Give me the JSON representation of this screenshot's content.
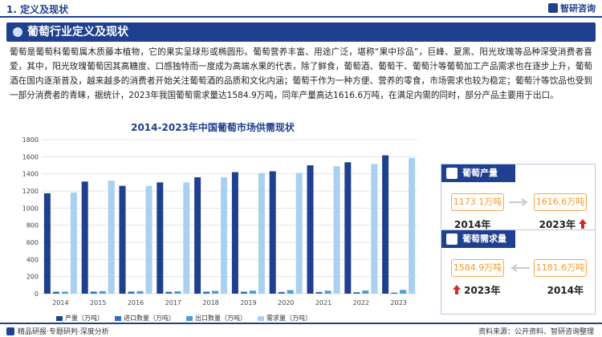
{
  "header": {
    "section_title": "1. 定义及现状",
    "logo_text": "智研咨询"
  },
  "banner": {
    "title": "葡萄行业定义及现状"
  },
  "intro": {
    "text": "葡萄是葡萄科葡萄属木质藤本植物，它的果实呈球形或椭圆形。葡萄营养丰富、用途广泛，堪称“果中珍品”，巨峰、夏黑、阳光玫瑰等品种深受消费者喜爱，其中，阳光玫瑰葡萄因其高糖度、口感独特而一度成为高端水果的代表，除了鲜食，葡萄酒、葡萄干、葡萄汁等葡萄加工产品需求也在逐步上升，葡萄酒在国内逐渐普及，越来越多的消费者开始关注葡萄酒的品质和文化内涵；葡萄干作为一种方便、营养的零食，市场需求也较为稳定；葡萄汁等饮品也受到一部分消费者的青睐，据统计，2023年我国葡萄需求量达1584.9万吨，同年产量高达1616.6万吨，在满足内需的同时，部分产品主要用于出口。"
  },
  "chart_data": {
    "type": "bar",
    "title": "2014-2023年中国葡萄市场供需现状",
    "categories": [
      "2014",
      "2015",
      "2016",
      "2017",
      "2018",
      "2019",
      "2020",
      "2021",
      "2022",
      "2023"
    ],
    "ylim": [
      0,
      1800
    ],
    "yticks": [
      0,
      200,
      400,
      600,
      800,
      1000,
      1200,
      1400,
      1600,
      1800
    ],
    "grid": true,
    "legend_position": "bottom",
    "series": [
      {
        "name": "产量（万吨）",
        "color": "#1f3f8f",
        "values": [
          1173.1,
          1310,
          1260,
          1300,
          1360,
          1420,
          1430,
          1500,
          1535,
          1616.6
        ]
      },
      {
        "name": "进口数量（万吨）",
        "color": "#2e6ec4",
        "values": [
          23,
          24,
          24,
          22,
          23,
          23,
          20,
          20,
          17,
          12
        ]
      },
      {
        "name": "出口数量（万吨）",
        "color": "#4a9fd6",
        "values": [
          23,
          30,
          30,
          28,
          33,
          35,
          42,
          35,
          37,
          44
        ]
      },
      {
        "name": "需求量（万吨）",
        "color": "#a9d0f0",
        "values": [
          1181.6,
          1320,
          1260,
          1300,
          1360,
          1410,
          1410,
          1490,
          1515,
          1584.9
        ]
      }
    ]
  },
  "cards": {
    "production": {
      "title": "葡萄产量",
      "left_value": "1173.1万吨",
      "right_value": "1616.6万吨",
      "left_year": "2014年",
      "right_year": "2023年"
    },
    "demand": {
      "title": "葡萄需求量",
      "left_value": "1584.9万吨",
      "right_value": "1181.6万吨",
      "left_year": "2023年",
      "right_year": "2014年"
    }
  },
  "footer": {
    "brand": "精品研报·专题研判·深度分析",
    "source": "资料来源：公开资料、智研咨询整理"
  }
}
